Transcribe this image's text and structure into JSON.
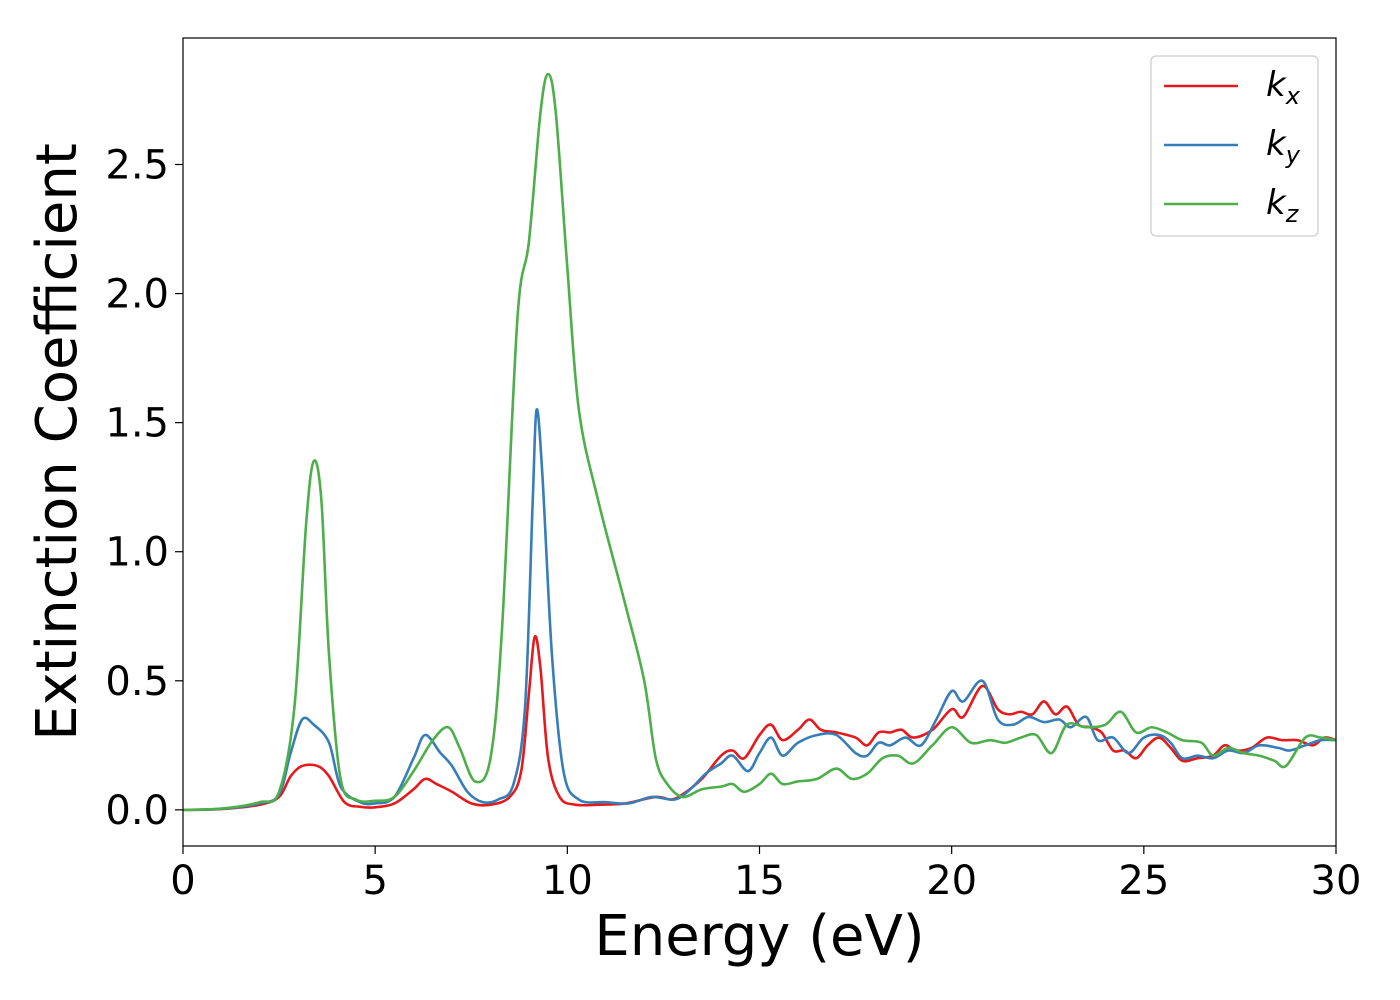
{
  "chart_data": {
    "type": "line",
    "title": "",
    "xlabel": "Energy (eV)",
    "ylabel": "Extinction Coefficient",
    "xlim": [
      0,
      30
    ],
    "ylim": [
      -0.14,
      2.99
    ],
    "xticks": [
      0,
      5,
      10,
      15,
      20,
      25,
      30
    ],
    "xtick_labels": [
      "0",
      "5",
      "10",
      "15",
      "20",
      "25",
      "30"
    ],
    "yticks": [
      0.0,
      0.5,
      1.0,
      1.5,
      2.0,
      2.5
    ],
    "ytick_labels": [
      "0.0",
      "0.5",
      "1.0",
      "1.5",
      "2.0",
      "2.5"
    ],
    "grid": false,
    "legend_position": "top-right",
    "series": [
      {
        "name": "kx",
        "legend_base": "k",
        "legend_sub": "x",
        "color": "#e41a1c",
        "points": [
          [
            0,
            0
          ],
          [
            1,
            0.003
          ],
          [
            2,
            0.02
          ],
          [
            2.5,
            0.05
          ],
          [
            2.8,
            0.13
          ],
          [
            3.1,
            0.17
          ],
          [
            3.5,
            0.17
          ],
          [
            3.8,
            0.13
          ],
          [
            4.2,
            0.03
          ],
          [
            4.6,
            0.012
          ],
          [
            5,
            0.01
          ],
          [
            5.5,
            0.025
          ],
          [
            6,
            0.08
          ],
          [
            6.3,
            0.12
          ],
          [
            6.6,
            0.1
          ],
          [
            7,
            0.07
          ],
          [
            7.5,
            0.025
          ],
          [
            8,
            0.02
          ],
          [
            8.5,
            0.05
          ],
          [
            8.8,
            0.15
          ],
          [
            9.0,
            0.45
          ],
          [
            9.15,
            0.67
          ],
          [
            9.3,
            0.55
          ],
          [
            9.5,
            0.2
          ],
          [
            9.8,
            0.05
          ],
          [
            10.2,
            0.02
          ],
          [
            10.8,
            0.02
          ],
          [
            11.5,
            0.025
          ],
          [
            12.3,
            0.05
          ],
          [
            12.7,
            0.04
          ],
          [
            13,
            0.06
          ],
          [
            13.5,
            0.12
          ],
          [
            14,
            0.21
          ],
          [
            14.3,
            0.23
          ],
          [
            14.6,
            0.2
          ],
          [
            15,
            0.29
          ],
          [
            15.3,
            0.33
          ],
          [
            15.6,
            0.27
          ],
          [
            16,
            0.31
          ],
          [
            16.3,
            0.35
          ],
          [
            16.6,
            0.31
          ],
          [
            17,
            0.3
          ],
          [
            17.5,
            0.28
          ],
          [
            17.8,
            0.25
          ],
          [
            18.1,
            0.3
          ],
          [
            18.4,
            0.3
          ],
          [
            18.7,
            0.31
          ],
          [
            19,
            0.28
          ],
          [
            19.5,
            0.31
          ],
          [
            20,
            0.39
          ],
          [
            20.3,
            0.36
          ],
          [
            20.8,
            0.48
          ],
          [
            21.2,
            0.39
          ],
          [
            21.5,
            0.37
          ],
          [
            21.8,
            0.38
          ],
          [
            22.1,
            0.37
          ],
          [
            22.4,
            0.42
          ],
          [
            22.7,
            0.37
          ],
          [
            23,
            0.4
          ],
          [
            23.3,
            0.33
          ],
          [
            23.6,
            0.32
          ],
          [
            23.9,
            0.3
          ],
          [
            24.2,
            0.23
          ],
          [
            24.5,
            0.23
          ],
          [
            24.8,
            0.2
          ],
          [
            25.1,
            0.25
          ],
          [
            25.4,
            0.28
          ],
          [
            25.7,
            0.24
          ],
          [
            26,
            0.19
          ],
          [
            26.4,
            0.2
          ],
          [
            26.8,
            0.21
          ],
          [
            27.1,
            0.25
          ],
          [
            27.4,
            0.23
          ],
          [
            27.8,
            0.24
          ],
          [
            28.2,
            0.28
          ],
          [
            28.6,
            0.27
          ],
          [
            29,
            0.27
          ],
          [
            29.4,
            0.25
          ],
          [
            29.7,
            0.28
          ],
          [
            30,
            0.27
          ]
        ]
      },
      {
        "name": "ky",
        "legend_base": "k",
        "legend_sub": "y",
        "color": "#377eb8",
        "points": [
          [
            0,
            0
          ],
          [
            1,
            0.004
          ],
          [
            2,
            0.025
          ],
          [
            2.5,
            0.06
          ],
          [
            2.8,
            0.22
          ],
          [
            3.1,
            0.35
          ],
          [
            3.4,
            0.33
          ],
          [
            3.8,
            0.26
          ],
          [
            4.1,
            0.09
          ],
          [
            4.6,
            0.03
          ],
          [
            5,
            0.025
          ],
          [
            5.5,
            0.05
          ],
          [
            6,
            0.2
          ],
          [
            6.3,
            0.29
          ],
          [
            6.7,
            0.22
          ],
          [
            7,
            0.17
          ],
          [
            7.4,
            0.07
          ],
          [
            7.8,
            0.03
          ],
          [
            8.2,
            0.04
          ],
          [
            8.6,
            0.1
          ],
          [
            8.9,
            0.4
          ],
          [
            9.1,
            1.2
          ],
          [
            9.2,
            1.55
          ],
          [
            9.35,
            1.3
          ],
          [
            9.6,
            0.6
          ],
          [
            9.9,
            0.15
          ],
          [
            10.3,
            0.04
          ],
          [
            11,
            0.03
          ],
          [
            11.6,
            0.025
          ],
          [
            12.2,
            0.05
          ],
          [
            12.8,
            0.04
          ],
          [
            13.2,
            0.08
          ],
          [
            13.6,
            0.14
          ],
          [
            14,
            0.18
          ],
          [
            14.3,
            0.21
          ],
          [
            14.7,
            0.15
          ],
          [
            15,
            0.22
          ],
          [
            15.3,
            0.28
          ],
          [
            15.6,
            0.21
          ],
          [
            16,
            0.26
          ],
          [
            16.5,
            0.29
          ],
          [
            17,
            0.29
          ],
          [
            17.5,
            0.22
          ],
          [
            17.8,
            0.21
          ],
          [
            18.1,
            0.26
          ],
          [
            18.4,
            0.25
          ],
          [
            18.8,
            0.28
          ],
          [
            19.2,
            0.25
          ],
          [
            19.6,
            0.35
          ],
          [
            20,
            0.46
          ],
          [
            20.3,
            0.42
          ],
          [
            20.8,
            0.5
          ],
          [
            21.2,
            0.35
          ],
          [
            21.6,
            0.33
          ],
          [
            22,
            0.36
          ],
          [
            22.4,
            0.34
          ],
          [
            22.8,
            0.35
          ],
          [
            23.1,
            0.32
          ],
          [
            23.5,
            0.36
          ],
          [
            23.8,
            0.27
          ],
          [
            24.2,
            0.28
          ],
          [
            24.6,
            0.22
          ],
          [
            25,
            0.28
          ],
          [
            25.4,
            0.29
          ],
          [
            25.7,
            0.26
          ],
          [
            26,
            0.2
          ],
          [
            26.4,
            0.21
          ],
          [
            26.8,
            0.2
          ],
          [
            27.2,
            0.23
          ],
          [
            27.6,
            0.22
          ],
          [
            28,
            0.25
          ],
          [
            28.5,
            0.24
          ],
          [
            28.8,
            0.23
          ],
          [
            29.2,
            0.25
          ],
          [
            29.6,
            0.27
          ],
          [
            30,
            0.27
          ]
        ]
      },
      {
        "name": "kz",
        "legend_base": "k",
        "legend_sub": "z",
        "color": "#4daf4a",
        "points": [
          [
            0,
            0
          ],
          [
            1,
            0.005
          ],
          [
            2,
            0.03
          ],
          [
            2.5,
            0.07
          ],
          [
            2.9,
            0.4
          ],
          [
            3.2,
            1.1
          ],
          [
            3.4,
            1.35
          ],
          [
            3.6,
            1.2
          ],
          [
            3.8,
            0.6
          ],
          [
            4.1,
            0.12
          ],
          [
            4.5,
            0.04
          ],
          [
            5,
            0.035
          ],
          [
            5.5,
            0.05
          ],
          [
            6,
            0.15
          ],
          [
            6.5,
            0.27
          ],
          [
            6.9,
            0.32
          ],
          [
            7.2,
            0.24
          ],
          [
            7.6,
            0.11
          ],
          [
            8,
            0.2
          ],
          [
            8.3,
            0.7
          ],
          [
            8.7,
            1.9
          ],
          [
            9.0,
            2.2
          ],
          [
            9.3,
            2.7
          ],
          [
            9.5,
            2.85
          ],
          [
            9.7,
            2.7
          ],
          [
            10,
            2.1
          ],
          [
            10.3,
            1.55
          ],
          [
            10.8,
            1.2
          ],
          [
            11.5,
            0.8
          ],
          [
            12,
            0.5
          ],
          [
            12.3,
            0.2
          ],
          [
            12.6,
            0.1
          ],
          [
            13,
            0.05
          ],
          [
            13.5,
            0.08
          ],
          [
            14,
            0.09
          ],
          [
            14.3,
            0.1
          ],
          [
            14.6,
            0.07
          ],
          [
            15,
            0.1
          ],
          [
            15.3,
            0.14
          ],
          [
            15.6,
            0.1
          ],
          [
            16,
            0.11
          ],
          [
            16.5,
            0.12
          ],
          [
            17,
            0.16
          ],
          [
            17.4,
            0.12
          ],
          [
            17.8,
            0.14
          ],
          [
            18.2,
            0.2
          ],
          [
            18.6,
            0.21
          ],
          [
            19,
            0.18
          ],
          [
            19.5,
            0.25
          ],
          [
            20,
            0.32
          ],
          [
            20.5,
            0.26
          ],
          [
            21,
            0.27
          ],
          [
            21.4,
            0.26
          ],
          [
            21.8,
            0.28
          ],
          [
            22.2,
            0.29
          ],
          [
            22.6,
            0.22
          ],
          [
            23,
            0.33
          ],
          [
            23.5,
            0.32
          ],
          [
            24,
            0.33
          ],
          [
            24.4,
            0.38
          ],
          [
            24.8,
            0.3
          ],
          [
            25.2,
            0.32
          ],
          [
            25.6,
            0.3
          ],
          [
            26,
            0.27
          ],
          [
            26.5,
            0.26
          ],
          [
            26.8,
            0.21
          ],
          [
            27.2,
            0.24
          ],
          [
            27.6,
            0.22
          ],
          [
            28,
            0.21
          ],
          [
            28.4,
            0.19
          ],
          [
            28.7,
            0.17
          ],
          [
            29.2,
            0.28
          ],
          [
            29.6,
            0.28
          ],
          [
            30,
            0.27
          ]
        ]
      }
    ]
  }
}
